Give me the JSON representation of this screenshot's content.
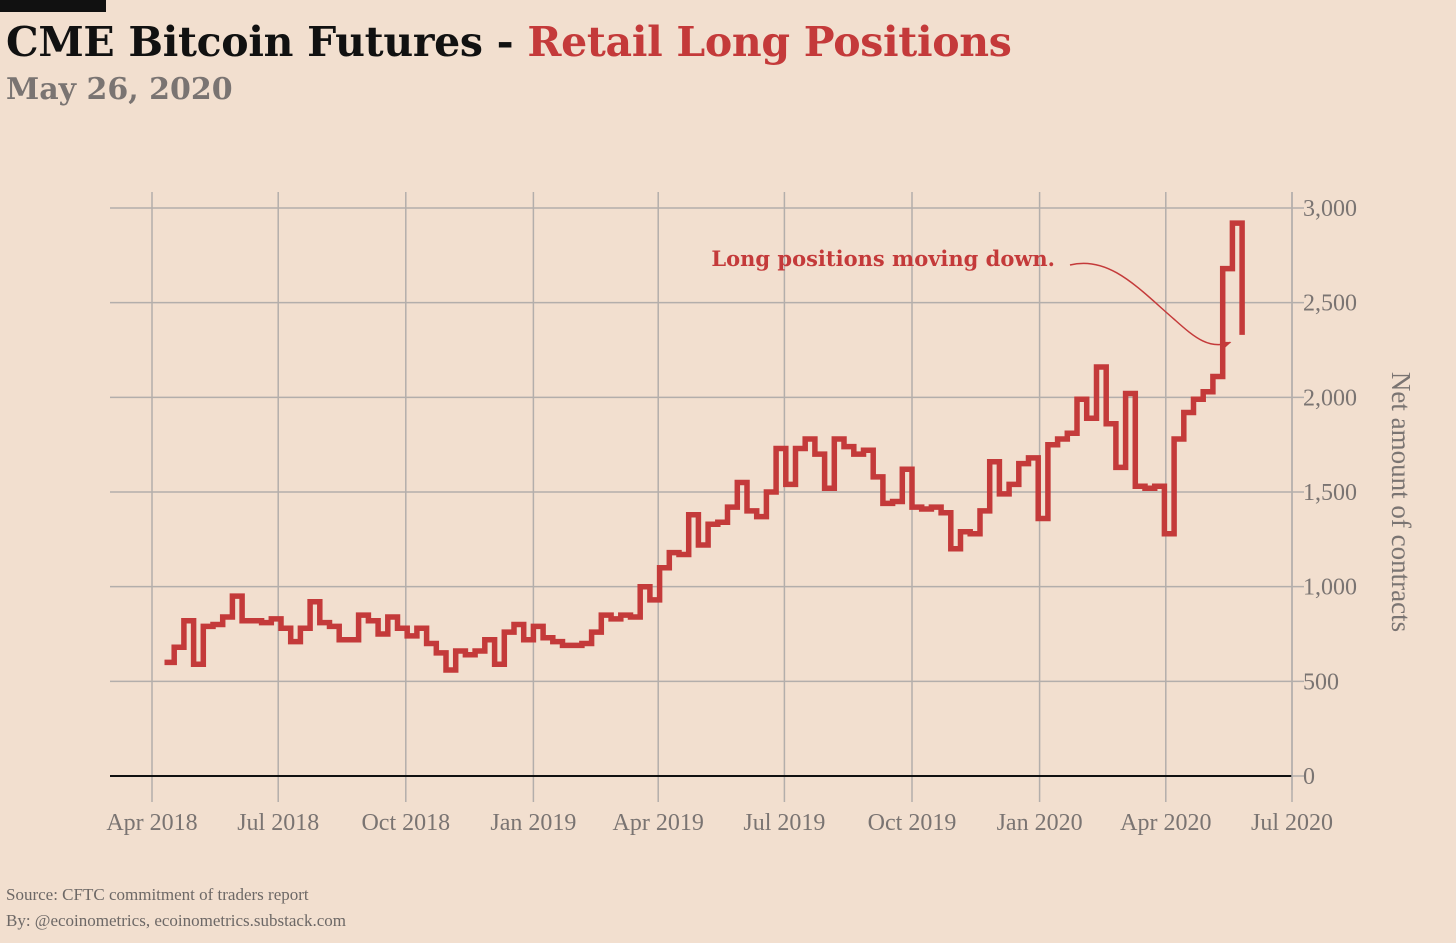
{
  "header": {
    "title_main": "CME Bitcoin Futures - ",
    "title_accent": "Retail Long Positions",
    "subtitle": "May 26, 2020"
  },
  "footer": {
    "source": "Source: CFTC commitment of traders report",
    "byline": "By: @ecoinometrics, ecoinometrics.substack.com"
  },
  "colors": {
    "background": "#f2dfcf",
    "line": "#c43a3a",
    "grid": "#b3aeab",
    "axis_text": "#7a7472",
    "title": "#111111"
  },
  "chart_data": {
    "type": "line",
    "step": true,
    "title": "CME Bitcoin Futures - Retail Long Positions",
    "subtitle": "May 26, 2020",
    "xlabel": "",
    "ylabel": "Net amount of contracts",
    "y_axis_position": "right",
    "grid": true,
    "xlim": [
      "2018-04-01",
      "2020-07-01"
    ],
    "ylim": [
      0,
      3000
    ],
    "x_ticks": [
      "2018-04-01",
      "2018-07-01",
      "2018-10-01",
      "2019-01-01",
      "2019-04-01",
      "2019-07-01",
      "2019-10-01",
      "2020-01-01",
      "2020-04-01",
      "2020-07-01"
    ],
    "x_tick_labels": [
      "Apr 2018",
      "Jul 2018",
      "Oct 2018",
      "Jan 2019",
      "Apr 2019",
      "Jul 2019",
      "Oct 2019",
      "Jan 2020",
      "Apr 2020",
      "Jul 2020"
    ],
    "y_ticks": [
      0,
      500,
      1000,
      1500,
      2000,
      2500,
      3000
    ],
    "y_tick_labels": [
      "0",
      "500",
      "1,000",
      "1,500",
      "2,000",
      "2,500",
      "3,000"
    ],
    "annotation": {
      "text": "Long positions moving down.",
      "arrow_to": {
        "x": "2020-05-19",
        "y": 2280
      }
    },
    "series": [
      {
        "name": "Retail Long Positions",
        "x": [
          "2018-04-10",
          "2018-04-17",
          "2018-04-24",
          "2018-05-01",
          "2018-05-08",
          "2018-05-15",
          "2018-05-22",
          "2018-05-29",
          "2018-06-05",
          "2018-06-12",
          "2018-06-19",
          "2018-06-26",
          "2018-07-03",
          "2018-07-10",
          "2018-07-17",
          "2018-07-24",
          "2018-07-31",
          "2018-08-07",
          "2018-08-14",
          "2018-08-21",
          "2018-08-28",
          "2018-09-04",
          "2018-09-11",
          "2018-09-18",
          "2018-09-25",
          "2018-10-02",
          "2018-10-09",
          "2018-10-16",
          "2018-10-23",
          "2018-10-30",
          "2018-11-06",
          "2018-11-13",
          "2018-11-20",
          "2018-11-27",
          "2018-12-04",
          "2018-12-11",
          "2018-12-18",
          "2018-12-25",
          "2019-01-01",
          "2019-01-08",
          "2019-01-15",
          "2019-01-22",
          "2019-01-29",
          "2019-02-05",
          "2019-02-12",
          "2019-02-19",
          "2019-02-26",
          "2019-03-05",
          "2019-03-12",
          "2019-03-19",
          "2019-03-26",
          "2019-04-02",
          "2019-04-09",
          "2019-04-16",
          "2019-04-23",
          "2019-04-30",
          "2019-05-07",
          "2019-05-14",
          "2019-05-21",
          "2019-05-28",
          "2019-06-04",
          "2019-06-11",
          "2019-06-18",
          "2019-06-25",
          "2019-07-02",
          "2019-07-09",
          "2019-07-16",
          "2019-07-23",
          "2019-07-30",
          "2019-08-06",
          "2019-08-13",
          "2019-08-20",
          "2019-08-27",
          "2019-09-03",
          "2019-09-10",
          "2019-09-17",
          "2019-09-24",
          "2019-10-01",
          "2019-10-08",
          "2019-10-15",
          "2019-10-22",
          "2019-10-29",
          "2019-11-05",
          "2019-11-12",
          "2019-11-19",
          "2019-11-26",
          "2019-12-03",
          "2019-12-10",
          "2019-12-17",
          "2019-12-24",
          "2019-12-31",
          "2020-01-07",
          "2020-01-14",
          "2020-01-21",
          "2020-01-28",
          "2020-02-04",
          "2020-02-11",
          "2020-02-18",
          "2020-02-25",
          "2020-03-03",
          "2020-03-10",
          "2020-03-17",
          "2020-03-24",
          "2020-03-31",
          "2020-04-07",
          "2020-04-14",
          "2020-04-21",
          "2020-04-28",
          "2020-05-05",
          "2020-05-12",
          "2020-05-19",
          "2020-05-26"
        ],
        "y": [
          600,
          680,
          820,
          590,
          790,
          800,
          840,
          950,
          820,
          820,
          810,
          830,
          780,
          710,
          780,
          920,
          810,
          790,
          720,
          720,
          850,
          820,
          750,
          840,
          780,
          740,
          780,
          700,
          650,
          560,
          660,
          640,
          660,
          720,
          590,
          760,
          800,
          720,
          790,
          730,
          710,
          690,
          690,
          700,
          760,
          850,
          830,
          850,
          840,
          1000,
          930,
          1100,
          1180,
          1170,
          1380,
          1220,
          1330,
          1340,
          1420,
          1550,
          1400,
          1370,
          1500,
          1730,
          1540,
          1730,
          1780,
          1700,
          1520,
          1780,
          1740,
          1700,
          1720,
          1580,
          1440,
          1450,
          1620,
          1420,
          1410,
          1420,
          1390,
          1200,
          1290,
          1280,
          1400,
          1660,
          1490,
          1540,
          1650,
          1680,
          1360,
          1750,
          1780,
          1810,
          1990,
          1890,
          2160,
          1860,
          1630,
          2020,
          1530,
          1520,
          1530,
          1280,
          1780,
          1920,
          1990,
          2030,
          2110,
          2680,
          2920,
          2330
        ]
      }
    ]
  }
}
